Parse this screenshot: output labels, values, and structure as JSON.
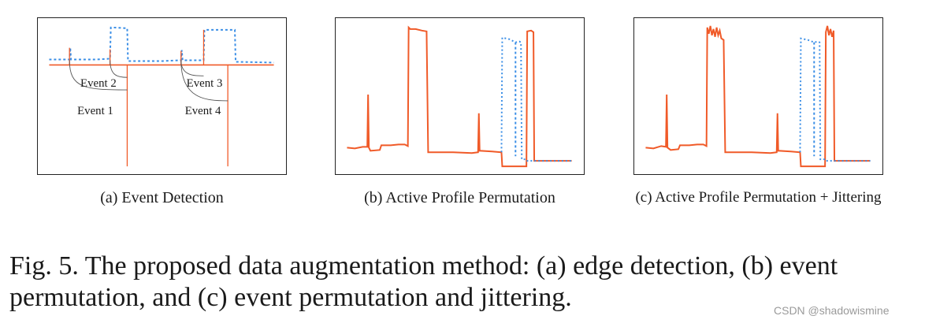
{
  "figure": {
    "panels": [
      {
        "id": "a",
        "caption": "(a) Event Detection",
        "event_labels": [
          "Event 2",
          "Event 1",
          "Event 3",
          "Event 4"
        ]
      },
      {
        "id": "b",
        "caption": "(b) Active Profile Permutation"
      },
      {
        "id": "c",
        "caption": "(c) Active Profile Permutation + Jittering"
      }
    ],
    "caption": "Fig. 5.  The proposed data augmentation method: (a) edge detection, (b) event permutation, and (c) event permutation and jittering."
  },
  "colors": {
    "original_series": "#3a8ee6",
    "augmented_series": "#f05a28",
    "frame": "#222222"
  },
  "watermark": "CSDN @shadowismine"
}
